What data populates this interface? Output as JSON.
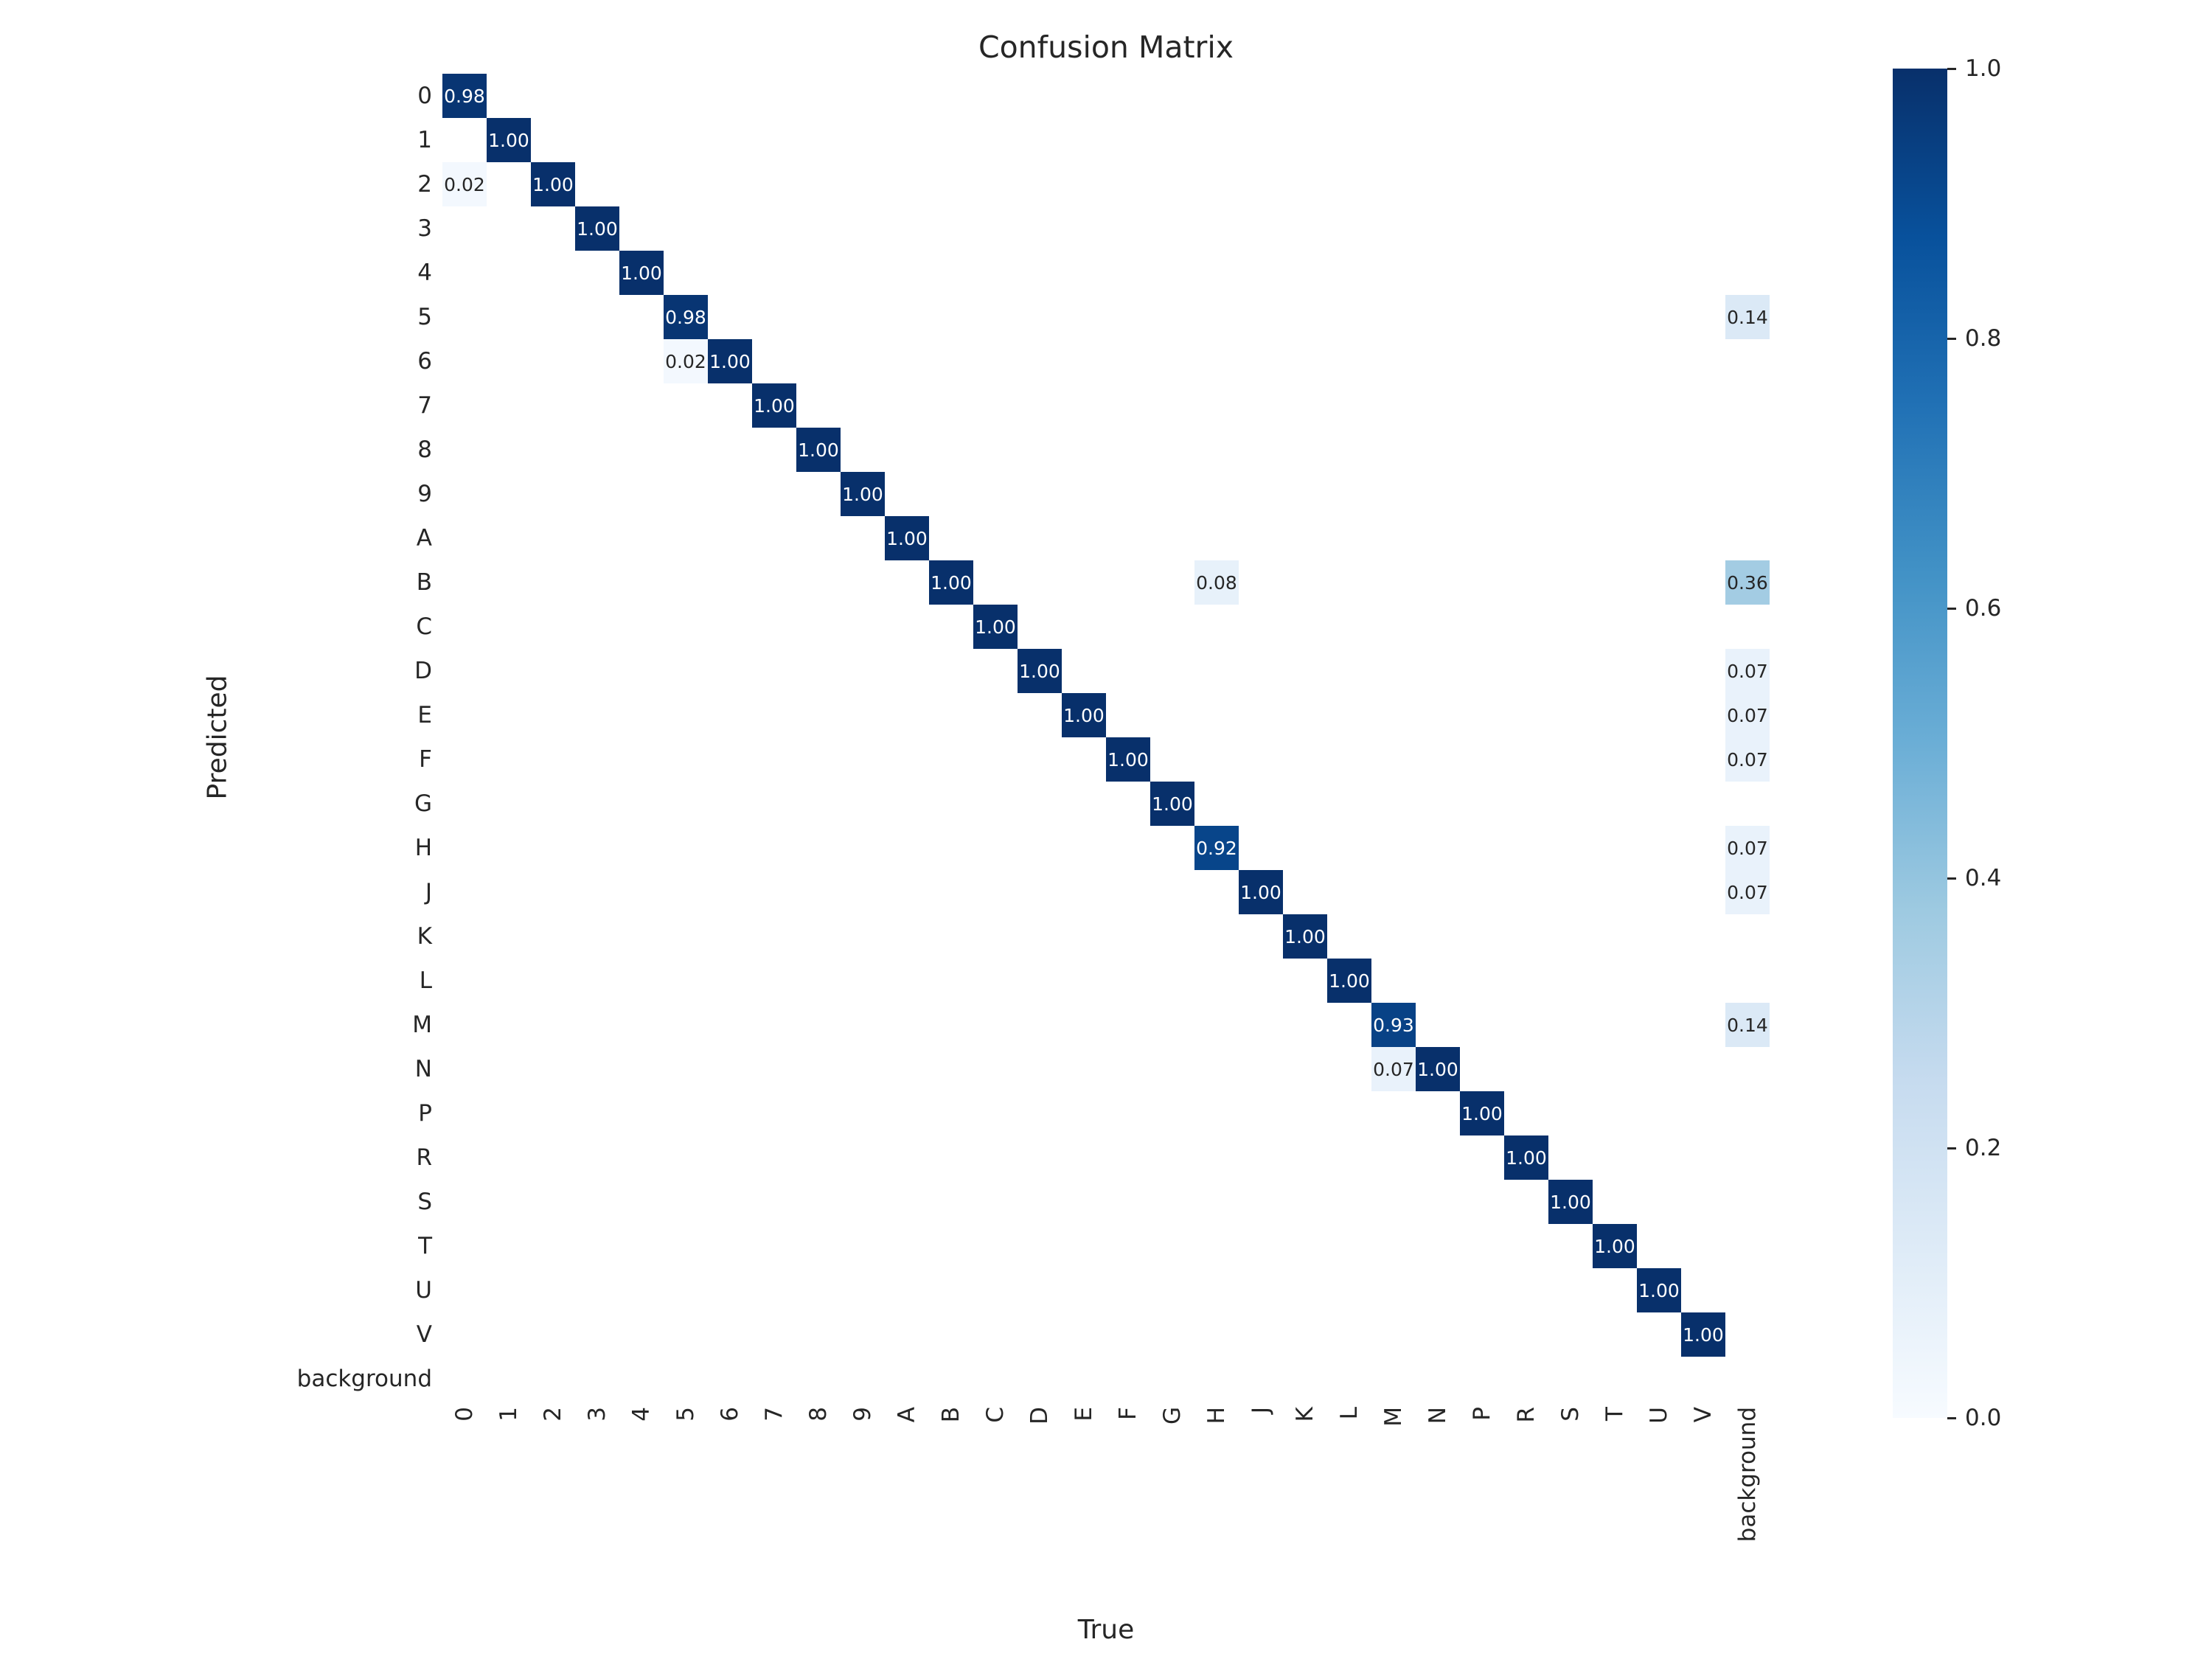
{
  "chart_data": {
    "type": "heatmap",
    "title": "Confusion Matrix",
    "xlabel": "True",
    "ylabel": "Predicted",
    "labels": [
      "0",
      "1",
      "2",
      "3",
      "4",
      "5",
      "6",
      "7",
      "8",
      "9",
      "A",
      "B",
      "C",
      "D",
      "E",
      "F",
      "G",
      "H",
      "J",
      "K",
      "L",
      "M",
      "N",
      "P",
      "R",
      "S",
      "T",
      "U",
      "V",
      "background"
    ],
    "cells": [
      [
        0,
        0,
        0.98
      ],
      [
        1,
        1,
        1.0
      ],
      [
        2,
        0,
        0.02
      ],
      [
        2,
        2,
        1.0
      ],
      [
        3,
        3,
        1.0
      ],
      [
        4,
        4,
        1.0
      ],
      [
        5,
        5,
        0.98
      ],
      [
        5,
        29,
        0.14
      ],
      [
        6,
        5,
        0.02
      ],
      [
        6,
        6,
        1.0
      ],
      [
        7,
        7,
        1.0
      ],
      [
        8,
        8,
        1.0
      ],
      [
        9,
        9,
        1.0
      ],
      [
        10,
        10,
        1.0
      ],
      [
        11,
        11,
        1.0
      ],
      [
        11,
        17,
        0.08
      ],
      [
        11,
        29,
        0.36
      ],
      [
        12,
        12,
        1.0
      ],
      [
        13,
        13,
        1.0
      ],
      [
        13,
        29,
        0.07
      ],
      [
        14,
        14,
        1.0
      ],
      [
        14,
        29,
        0.07
      ],
      [
        15,
        15,
        1.0
      ],
      [
        15,
        29,
        0.07
      ],
      [
        16,
        16,
        1.0
      ],
      [
        17,
        17,
        0.92
      ],
      [
        17,
        29,
        0.07
      ],
      [
        18,
        18,
        1.0
      ],
      [
        18,
        29,
        0.07
      ],
      [
        19,
        19,
        1.0
      ],
      [
        20,
        20,
        1.0
      ],
      [
        21,
        21,
        0.93
      ],
      [
        21,
        29,
        0.14
      ],
      [
        22,
        21,
        0.07
      ],
      [
        22,
        22,
        1.0
      ],
      [
        23,
        23,
        1.0
      ],
      [
        24,
        24,
        1.0
      ],
      [
        25,
        25,
        1.0
      ],
      [
        26,
        26,
        1.0
      ],
      [
        27,
        27,
        1.0
      ],
      [
        28,
        28,
        1.0
      ]
    ],
    "vmin": 0.0,
    "vmax": 1.0,
    "colormap": "Blues",
    "colormap_stops": [
      {
        "t": 0.0,
        "color": "#f7fbff"
      },
      {
        "t": 0.125,
        "color": "#deebf7"
      },
      {
        "t": 0.25,
        "color": "#c6dbef"
      },
      {
        "t": 0.375,
        "color": "#9ecae1"
      },
      {
        "t": 0.5,
        "color": "#6baed6"
      },
      {
        "t": 0.625,
        "color": "#4292c6"
      },
      {
        "t": 0.75,
        "color": "#2171b5"
      },
      {
        "t": 0.875,
        "color": "#08519c"
      },
      {
        "t": 1.0,
        "color": "#08306b"
      }
    ],
    "colorbar_ticks": [
      1.0,
      0.8,
      0.6,
      0.4,
      0.2,
      0.0
    ],
    "annotation_colors": {
      "on_dark": "#ffffff",
      "on_light": "#262626"
    },
    "legend_position": "right",
    "grid": false
  }
}
